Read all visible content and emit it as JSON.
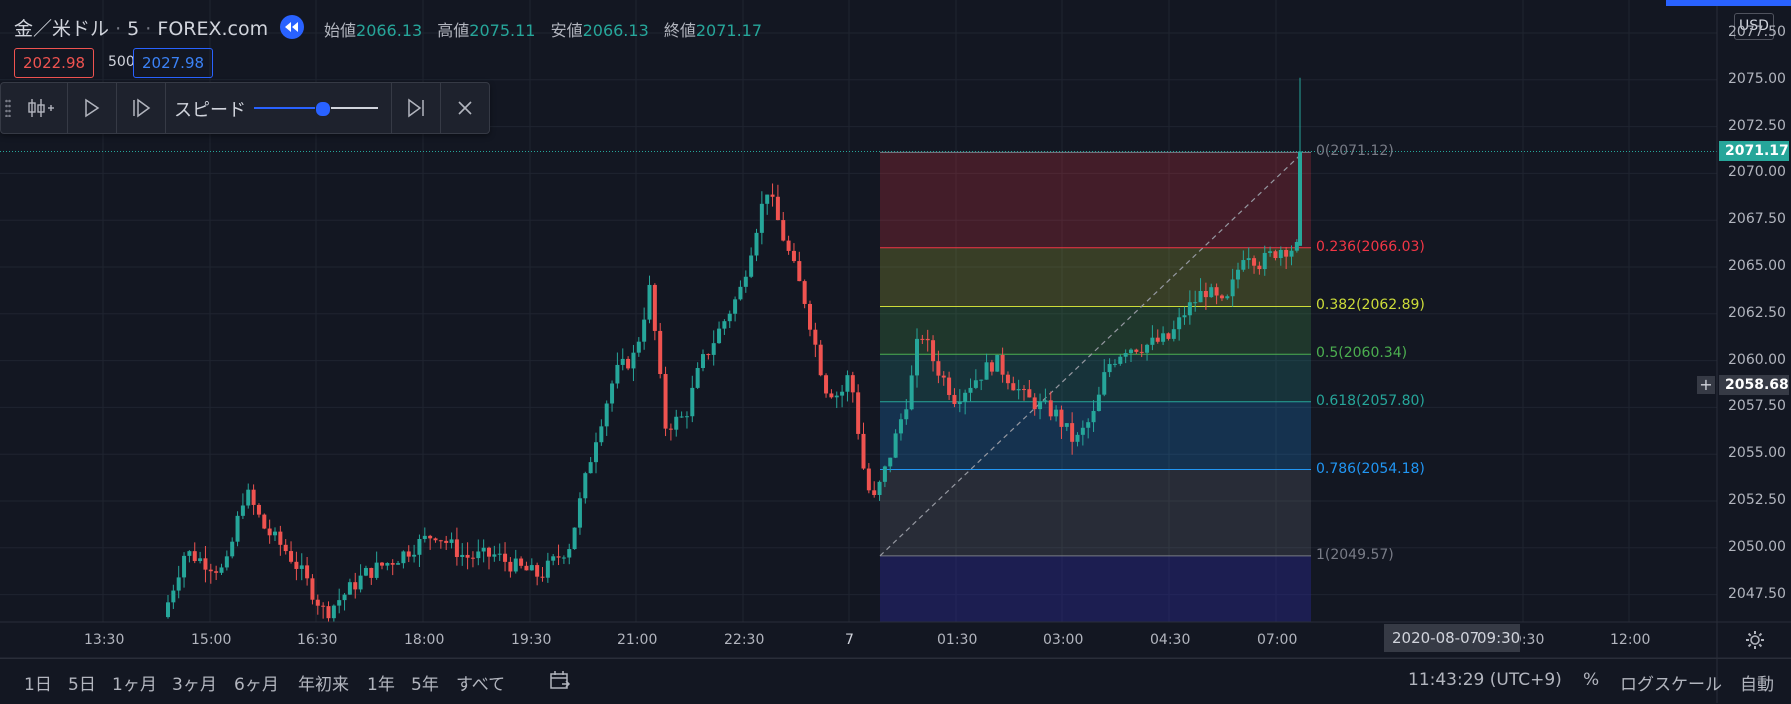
{
  "header": {
    "symbol": "金／米ドル",
    "interval": "5",
    "exchange": "FOREX.com",
    "open_label": "始値",
    "open_value": "2066.13",
    "high_label": "高値",
    "high_value": "2075.11",
    "low_label": "安値",
    "low_value": "2066.13",
    "close_label": "終値",
    "close_value": "2071.17",
    "bid": "2022.98",
    "spread": "500",
    "ask": "2027.98"
  },
  "replay_toolbar": {
    "speed_label": "スピード",
    "speed_level": 0.55
  },
  "price_axis": {
    "currency": "USD",
    "ticks": [
      "2077.50",
      "2075.00",
      "2072.50",
      "2070.00",
      "2067.50",
      "2065.00",
      "2062.50",
      "2060.00",
      "2057.50",
      "2055.00",
      "2052.50",
      "2050.00",
      "2047.50"
    ],
    "last_price": "2071.17",
    "crosshair_price": "2058.68"
  },
  "time_axis": {
    "ticks": [
      "13:30",
      "15:00",
      "16:30",
      "18:00",
      "19:30",
      "21:00",
      "22:30",
      "7",
      "01:30",
      "03:00",
      "04:30",
      "07:00",
      "09:30",
      "12:00"
    ],
    "tooltip_date": "2020-08-07",
    "tooltip_time": "09:30"
  },
  "fib_levels": [
    {
      "label": "0(2071.12)",
      "price": 2071.12,
      "color": "#787b86"
    },
    {
      "label": "0.236(2066.03)",
      "price": 2066.03,
      "color": "#f23645"
    },
    {
      "label": "0.382(2062.89)",
      "price": 2062.89,
      "color": "#cddc39"
    },
    {
      "label": "0.5(2060.34)",
      "price": 2060.34,
      "color": "#4caf50"
    },
    {
      "label": "0.618(2057.80)",
      "price": 2057.8,
      "color": "#26a69a"
    },
    {
      "label": "0.786(2054.18)",
      "price": 2054.18,
      "color": "#2196f3"
    },
    {
      "label": "1(2049.57)",
      "price": 2049.57,
      "color": "#787b86"
    }
  ],
  "bottom_bar": {
    "ranges": [
      "1日",
      "5日",
      "1ヶ月",
      "3ヶ月",
      "6ヶ月",
      "年初来",
      "1年",
      "5年",
      "すべて"
    ],
    "clock": "11:43:29 (UTC+9)",
    "percent": "%",
    "log_scale": "ログスケール",
    "auto": "自動"
  },
  "colors": {
    "up": "#26a69a",
    "down": "#ef5350",
    "background": "#131722",
    "accent": "#2962ff"
  }
}
